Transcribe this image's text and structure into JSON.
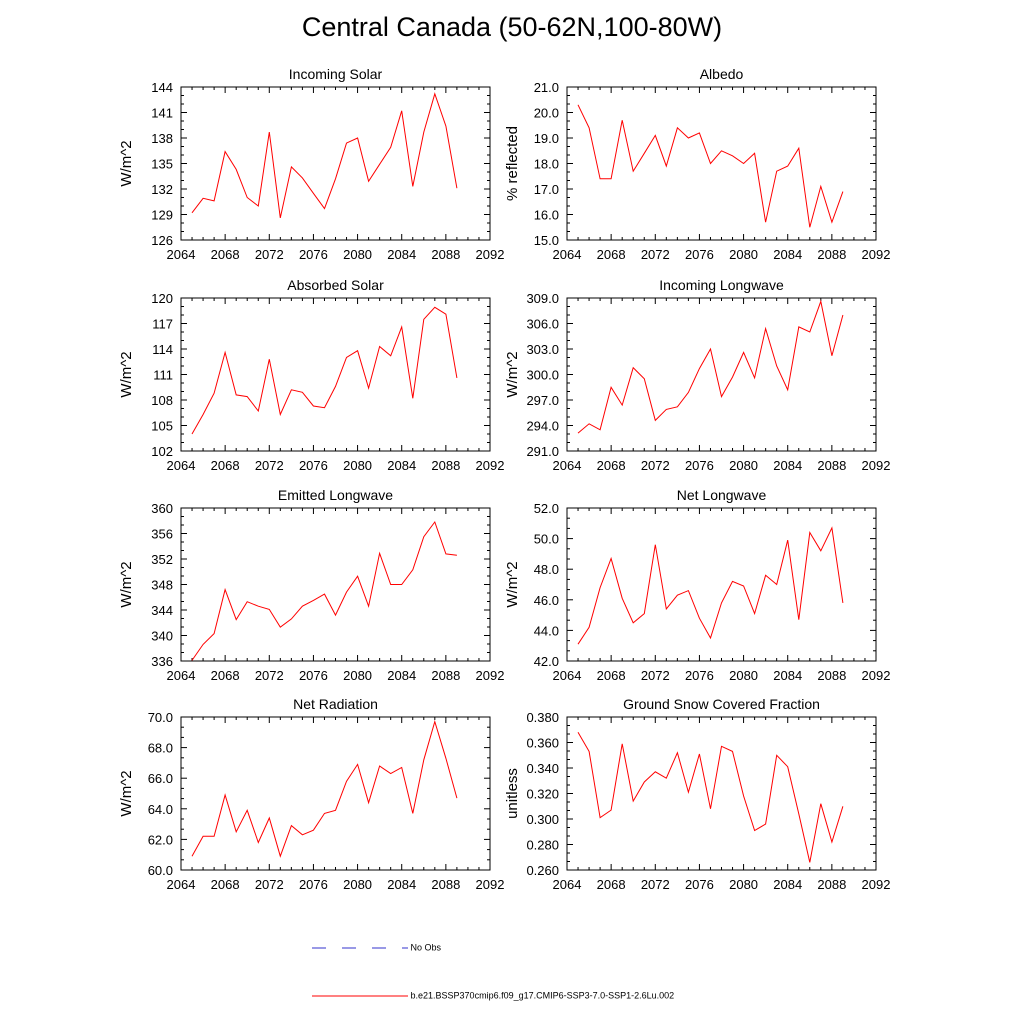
{
  "page": {
    "title": "Central Canada (50-62N,100-80W)"
  },
  "legend": {
    "items": [
      {
        "label": "No Obs",
        "color": "#3333cc",
        "style": "dashed"
      },
      {
        "label": "b.e21.BSSP370cmip6.f09_g17.CMIP6-SSP3-7.0-SSP1-2.6Lu.002",
        "color": "#ff0000",
        "style": "solid"
      }
    ]
  },
  "chart_data": [
    {
      "type": "line",
      "title": "Incoming Solar",
      "ylabel": "W/m^2",
      "xlim": [
        2064,
        2092
      ],
      "ylim": [
        126,
        144
      ],
      "xticks": [
        "2064",
        "2068",
        "2072",
        "2076",
        "2080",
        "2084",
        "2088",
        "2092"
      ],
      "yticks": [
        "126",
        "129",
        "132",
        "135",
        "138",
        "141",
        "144"
      ],
      "series": [
        {
          "color": "#ff0000",
          "x": [
            2065,
            2066,
            2067,
            2068,
            2069,
            2070,
            2071,
            2072,
            2073,
            2074,
            2075,
            2076,
            2077,
            2078,
            2079,
            2080,
            2081,
            2082,
            2083,
            2084,
            2085,
            2086,
            2087,
            2088,
            2089
          ],
          "values": [
            129.2,
            130.9,
            130.6,
            136.4,
            134.3,
            131.0,
            130.0,
            138.7,
            128.6,
            134.6,
            133.3,
            131.5,
            129.7,
            133.2,
            137.4,
            138.0,
            132.9,
            134.9,
            136.9,
            141.2,
            132.3,
            138.7,
            143.2,
            139.4,
            132.1
          ]
        }
      ]
    },
    {
      "type": "line",
      "title": "Albedo",
      "ylabel": "% reflected",
      "xlim": [
        2064,
        2092
      ],
      "ylim": [
        15.0,
        21.0
      ],
      "xticks": [
        "2064",
        "2068",
        "2072",
        "2076",
        "2080",
        "2084",
        "2088",
        "2092"
      ],
      "yticks": [
        "15.0",
        "16.0",
        "17.0",
        "18.0",
        "19.0",
        "20.0",
        "21.0"
      ],
      "series": [
        {
          "color": "#ff0000",
          "x": [
            2065,
            2066,
            2067,
            2068,
            2069,
            2070,
            2071,
            2072,
            2073,
            2074,
            2075,
            2076,
            2077,
            2078,
            2079,
            2080,
            2081,
            2082,
            2083,
            2084,
            2085,
            2086,
            2087,
            2088,
            2089
          ],
          "values": [
            20.3,
            19.4,
            17.4,
            17.4,
            19.7,
            17.7,
            18.4,
            19.1,
            17.9,
            19.4,
            19.0,
            19.2,
            18.0,
            18.5,
            18.3,
            18.0,
            18.4,
            15.7,
            17.7,
            17.9,
            18.6,
            15.5,
            17.1,
            15.7,
            16.9
          ]
        }
      ]
    },
    {
      "type": "line",
      "title": "Absorbed Solar",
      "ylabel": "W/m^2",
      "xlim": [
        2064,
        2092
      ],
      "ylim": [
        102,
        120
      ],
      "xticks": [
        "2064",
        "2068",
        "2072",
        "2076",
        "2080",
        "2084",
        "2088",
        "2092"
      ],
      "yticks": [
        "102",
        "105",
        "108",
        "111",
        "114",
        "117",
        "120"
      ],
      "series": [
        {
          "color": "#ff0000",
          "x": [
            2065,
            2066,
            2067,
            2068,
            2069,
            2070,
            2071,
            2072,
            2073,
            2074,
            2075,
            2076,
            2077,
            2078,
            2079,
            2080,
            2081,
            2082,
            2083,
            2084,
            2085,
            2086,
            2087,
            2088,
            2089
          ],
          "values": [
            104.0,
            106.3,
            108.8,
            113.6,
            108.6,
            108.4,
            106.7,
            112.8,
            106.3,
            109.2,
            108.9,
            107.3,
            107.1,
            109.6,
            113.0,
            113.8,
            109.4,
            114.3,
            113.2,
            116.6,
            108.2,
            117.5,
            118.9,
            118.1,
            110.6
          ]
        }
      ]
    },
    {
      "type": "line",
      "title": "Incoming Longwave",
      "ylabel": "W/m^2",
      "xlim": [
        2064,
        2092
      ],
      "ylim": [
        291.0,
        309.0
      ],
      "xticks": [
        "2064",
        "2068",
        "2072",
        "2076",
        "2080",
        "2084",
        "2088",
        "2092"
      ],
      "yticks": [
        "291.0",
        "294.0",
        "297.0",
        "300.0",
        "303.0",
        "306.0",
        "309.0"
      ],
      "series": [
        {
          "color": "#ff0000",
          "x": [
            2065,
            2066,
            2067,
            2068,
            2069,
            2070,
            2071,
            2072,
            2073,
            2074,
            2075,
            2076,
            2077,
            2078,
            2079,
            2080,
            2081,
            2082,
            2083,
            2084,
            2085,
            2086,
            2087,
            2088,
            2089
          ],
          "values": [
            293.1,
            294.2,
            293.5,
            298.5,
            296.4,
            300.8,
            299.5,
            294.6,
            295.9,
            296.2,
            297.9,
            300.7,
            303.0,
            297.4,
            299.7,
            302.6,
            299.6,
            305.4,
            301.0,
            298.2,
            305.6,
            305.0,
            308.6,
            302.2,
            307.0
          ]
        }
      ]
    },
    {
      "type": "line",
      "title": "Emitted Longwave",
      "ylabel": "W/m^2",
      "xlim": [
        2064,
        2092
      ],
      "ylim": [
        336,
        360
      ],
      "xticks": [
        "2064",
        "2068",
        "2072",
        "2076",
        "2080",
        "2084",
        "2088",
        "2092"
      ],
      "yticks": [
        "336",
        "340",
        "344",
        "348",
        "352",
        "356",
        "360"
      ],
      "series": [
        {
          "color": "#ff0000",
          "x": [
            2065,
            2066,
            2067,
            2068,
            2069,
            2070,
            2071,
            2072,
            2073,
            2074,
            2075,
            2076,
            2077,
            2078,
            2079,
            2080,
            2081,
            2082,
            2083,
            2084,
            2085,
            2086,
            2087,
            2088,
            2089
          ],
          "values": [
            336.1,
            338.6,
            340.3,
            347.2,
            342.5,
            345.3,
            344.6,
            344.1,
            341.3,
            342.6,
            344.6,
            345.5,
            346.5,
            343.2,
            346.8,
            349.3,
            344.6,
            352.9,
            348.0,
            348.0,
            350.3,
            355.5,
            357.8,
            352.8,
            352.6
          ]
        }
      ]
    },
    {
      "type": "line",
      "title": "Net Longwave",
      "ylabel": "W/m^2",
      "xlim": [
        2064,
        2092
      ],
      "ylim": [
        42.0,
        52.0
      ],
      "xticks": [
        "2064",
        "2068",
        "2072",
        "2076",
        "2080",
        "2084",
        "2088",
        "2092"
      ],
      "yticks": [
        "42.0",
        "44.0",
        "46.0",
        "48.0",
        "50.0",
        "52.0"
      ],
      "series": [
        {
          "color": "#ff0000",
          "x": [
            2065,
            2066,
            2067,
            2068,
            2069,
            2070,
            2071,
            2072,
            2073,
            2074,
            2075,
            2076,
            2077,
            2078,
            2079,
            2080,
            2081,
            2082,
            2083,
            2084,
            2085,
            2086,
            2087,
            2088,
            2089
          ],
          "values": [
            43.1,
            44.2,
            46.8,
            48.7,
            46.1,
            44.5,
            45.1,
            49.6,
            45.4,
            46.3,
            46.6,
            44.8,
            43.5,
            45.8,
            47.2,
            46.9,
            45.1,
            47.6,
            47.0,
            49.9,
            44.7,
            50.4,
            49.2,
            50.7,
            45.8
          ]
        }
      ]
    },
    {
      "type": "line",
      "title": "Net Radiation",
      "ylabel": "W/m^2",
      "xlim": [
        2064,
        2092
      ],
      "ylim": [
        60.0,
        70.0
      ],
      "xticks": [
        "2064",
        "2068",
        "2072",
        "2076",
        "2080",
        "2084",
        "2088",
        "2092"
      ],
      "yticks": [
        "60.0",
        "62.0",
        "64.0",
        "66.0",
        "68.0",
        "70.0"
      ],
      "series": [
        {
          "color": "#ff0000",
          "x": [
            2065,
            2066,
            2067,
            2068,
            2069,
            2070,
            2071,
            2072,
            2073,
            2074,
            2075,
            2076,
            2077,
            2078,
            2079,
            2080,
            2081,
            2082,
            2083,
            2084,
            2085,
            2086,
            2087,
            2088,
            2089
          ],
          "values": [
            60.9,
            62.2,
            62.2,
            64.9,
            62.5,
            63.9,
            61.8,
            63.4,
            60.9,
            62.9,
            62.3,
            62.6,
            63.7,
            63.9,
            65.8,
            66.9,
            64.4,
            66.8,
            66.3,
            66.7,
            63.7,
            67.2,
            69.7,
            67.3,
            64.7
          ]
        }
      ]
    },
    {
      "type": "line",
      "title": "Ground Snow Covered Fraction",
      "ylabel": "unitless",
      "xlim": [
        2064,
        2092
      ],
      "ylim": [
        0.26,
        0.38
      ],
      "xticks": [
        "2064",
        "2068",
        "2072",
        "2076",
        "2080",
        "2084",
        "2088",
        "2092"
      ],
      "yticks": [
        "0.260",
        "0.280",
        "0.300",
        "0.320",
        "0.340",
        "0.360",
        "0.380"
      ],
      "series": [
        {
          "color": "#ff0000",
          "x": [
            2065,
            2066,
            2067,
            2068,
            2069,
            2070,
            2071,
            2072,
            2073,
            2074,
            2075,
            2076,
            2077,
            2078,
            2079,
            2080,
            2081,
            2082,
            2083,
            2084,
            2085,
            2086,
            2087,
            2088,
            2089
          ],
          "values": [
            0.368,
            0.353,
            0.301,
            0.307,
            0.359,
            0.314,
            0.329,
            0.337,
            0.332,
            0.352,
            0.321,
            0.351,
            0.308,
            0.357,
            0.353,
            0.318,
            0.291,
            0.296,
            0.35,
            0.341,
            0.304,
            0.266,
            0.312,
            0.282,
            0.31
          ]
        }
      ]
    }
  ]
}
